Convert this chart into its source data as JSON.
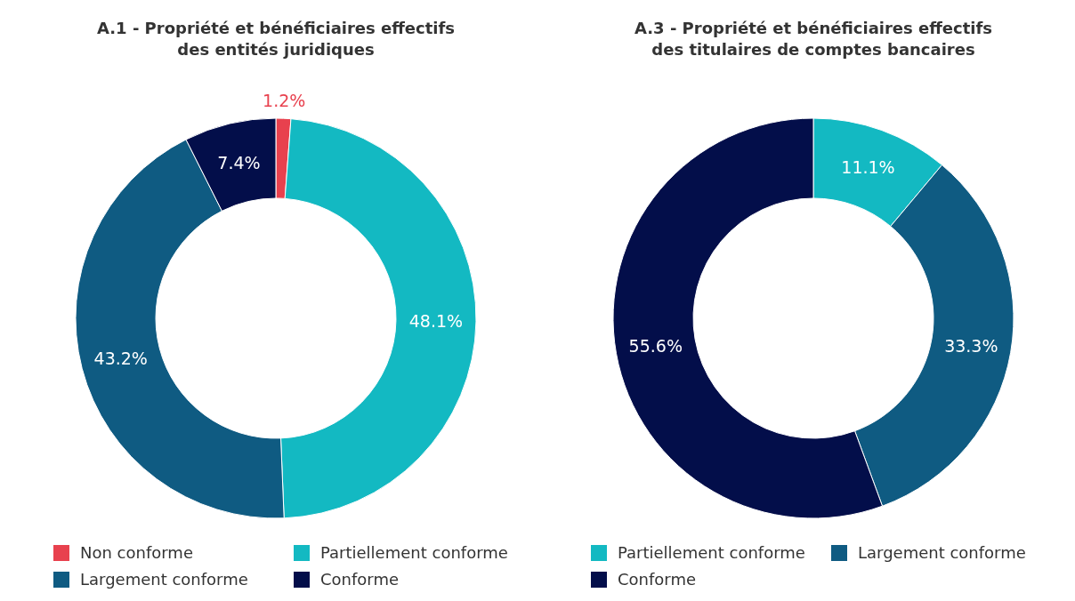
{
  "chart_data": [
    {
      "type": "donut",
      "title": "A.1 - Propriété et bénéficiaires effectifs des entités juridiques",
      "categories": [
        "Non conforme",
        "Partiellement conforme",
        "Largement conforme",
        "Conforme"
      ],
      "values": [
        1.2,
        48.1,
        43.2,
        7.4
      ],
      "colors": [
        "#e8414e",
        "#13b9c2",
        "#0f5b82",
        "#030e4a"
      ],
      "value_labels": [
        "1.2%",
        "48.1%",
        "43.2%",
        "7.4%"
      ],
      "legend": "bottom"
    },
    {
      "type": "donut",
      "title": "A.3 - Propriété et bénéficiaires effectifs des titulaires de comptes bancaires",
      "categories": [
        "Partiellement conforme",
        "Largement conforme",
        "Conforme"
      ],
      "values": [
        11.1,
        33.3,
        55.6
      ],
      "colors": [
        "#13b9c2",
        "#0f5b82",
        "#030e4a"
      ],
      "value_labels": [
        "11.1%",
        "33.3%",
        "55.6%"
      ],
      "legend": "bottom"
    }
  ]
}
